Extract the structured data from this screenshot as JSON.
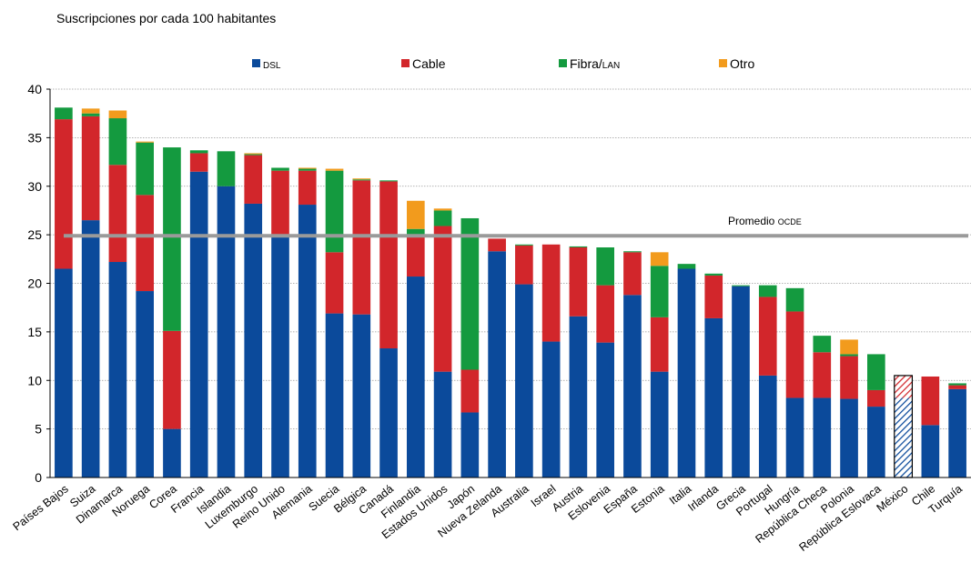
{
  "chart_data": {
    "type": "bar",
    "stacked": true,
    "title": "Suscripciones por cada 100 habitantes",
    "ylim": [
      0,
      40
    ],
    "yticks": [
      0,
      5,
      10,
      15,
      20,
      25,
      30,
      35,
      40
    ],
    "grid": true,
    "legend_position": "top",
    "categories": [
      "Países Bajos",
      "Suiza",
      "Dinamarca",
      "Noruega",
      "Corea",
      "Francia",
      "Islandia",
      "Luxemburgo",
      "Reino Unido",
      "Alemania",
      "Suecia",
      "Bélgica",
      "Canadá",
      "Finlandia",
      "Estados Unidos",
      "Japón",
      "Nueva Zelanda",
      "Australia",
      "Israel",
      "Austria",
      "Eslovenia",
      "España",
      "Estonia",
      "Italia",
      "Irlanda",
      "Grecia",
      "Portugal",
      "Hungría",
      "República Checa",
      "Polonia",
      "República Eslovaca",
      "México",
      "Chile",
      "Turquía"
    ],
    "series": [
      {
        "name": "DSL",
        "label_main": "DSL",
        "label_small": "",
        "color": "#0b4a9b",
        "values": [
          21.5,
          26.5,
          22.2,
          19.2,
          5.0,
          31.5,
          30.0,
          28.2,
          24.8,
          28.1,
          16.9,
          16.8,
          13.3,
          20.7,
          10.9,
          6.7,
          23.3,
          19.9,
          14.0,
          16.6,
          13.9,
          18.8,
          10.9,
          21.5,
          16.4,
          19.7,
          10.5,
          8.2,
          8.2,
          8.1,
          7.3,
          8.2,
          5.4,
          9.1
        ]
      },
      {
        "name": "Cable",
        "label_main": "Cable",
        "label_small": "",
        "color": "#d2262b",
        "values": [
          15.4,
          10.7,
          10.0,
          9.9,
          10.1,
          1.9,
          0.0,
          5.0,
          6.8,
          3.5,
          6.3,
          13.8,
          17.2,
          4.1,
          15.0,
          4.4,
          1.3,
          4.0,
          10.0,
          7.1,
          5.9,
          4.4,
          5.6,
          0.0,
          4.4,
          0.0,
          8.1,
          8.9,
          4.7,
          4.4,
          1.7,
          2.1,
          5.0,
          0.4
        ]
      },
      {
        "name": "Fibra/LAN",
        "label_main": "Fibra/",
        "label_small": "LAN",
        "color": "#149a3f",
        "values": [
          1.2,
          0.3,
          4.8,
          5.4,
          18.9,
          0.3,
          3.6,
          0.1,
          0.3,
          0.2,
          8.4,
          0.1,
          0.1,
          0.8,
          1.6,
          15.6,
          0.0,
          0.1,
          0.0,
          0.1,
          3.9,
          0.1,
          5.3,
          0.5,
          0.2,
          0.1,
          1.2,
          2.4,
          1.7,
          0.2,
          3.7,
          0.0,
          0.0,
          0.2
        ]
      },
      {
        "name": "Otro",
        "label_main": "Otro",
        "label_small": "",
        "color": "#f29b1d",
        "values": [
          0.0,
          0.5,
          0.8,
          0.1,
          0.0,
          0.0,
          0.0,
          0.1,
          0.0,
          0.1,
          0.2,
          0.1,
          0.0,
          2.9,
          0.2,
          0.0,
          0.0,
          0.0,
          0.0,
          0.0,
          0.0,
          0.0,
          1.4,
          0.0,
          0.0,
          0.0,
          0.0,
          0.0,
          0.0,
          1.5,
          0.0,
          0.2,
          0.0,
          0.0
        ]
      }
    ],
    "hatched_categories": [
      "México"
    ],
    "reference_line": {
      "value": 24.9,
      "label_main": "Promedio ",
      "label_small": "OCDE",
      "color": "#9a9a9a"
    }
  }
}
